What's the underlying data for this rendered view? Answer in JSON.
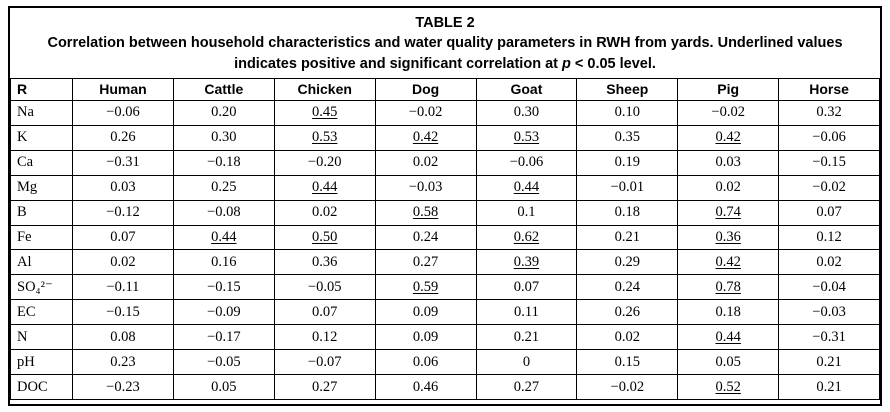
{
  "caption": {
    "title": "TABLE 2",
    "line1": "Correlation between household characteristics and water quality parameters in RWH from yards.  Underlined values",
    "line2_pre": "indicates positive and significant correlation at ",
    "line2_italic": "p",
    "line2_post": " < 0.05 level."
  },
  "table": {
    "header": [
      "R",
      "Human",
      "Cattle",
      "Chicken",
      "Dog",
      "Goat",
      "Sheep",
      "Pig",
      "Horse"
    ],
    "rows": [
      {
        "label": "Na",
        "values": [
          "−0.06",
          "0.20",
          "0.45",
          "−0.02",
          "0.30",
          "0.10",
          "−0.02",
          "0.32"
        ],
        "underlined": [
          2
        ]
      },
      {
        "label": "K",
        "values": [
          "0.26",
          "0.30",
          "0.53",
          "0.42",
          "0.53",
          "0.35",
          "0.42",
          "−0.06"
        ],
        "underlined": [
          2,
          3,
          4,
          6
        ]
      },
      {
        "label": "Ca",
        "values": [
          "−0.31",
          "−0.18",
          "−0.20",
          "0.02",
          "−0.06",
          "0.19",
          "0.03",
          "−0.15"
        ],
        "underlined": []
      },
      {
        "label": "Mg",
        "values": [
          "0.03",
          "0.25",
          "0.44",
          "−0.03",
          "0.44",
          "−0.01",
          "0.02",
          "−0.02"
        ],
        "underlined": [
          2,
          4
        ]
      },
      {
        "label": "B",
        "values": [
          "−0.12",
          "−0.08",
          "0.02",
          "0.58",
          "0.1",
          "0.18",
          "0.74",
          "0.07"
        ],
        "underlined": [
          3,
          6
        ]
      },
      {
        "label": "Fe",
        "values": [
          "0.07",
          "0.44",
          "0.50",
          "0.24",
          "0.62",
          "0.21",
          "0.36",
          "0.12"
        ],
        "underlined": [
          1,
          2,
          4,
          6
        ]
      },
      {
        "label": "Al",
        "values": [
          "0.02",
          "0.16",
          "0.36",
          "0.27",
          "0.39",
          "0.29",
          "0.42",
          "0.02"
        ],
        "underlined": [
          4,
          6
        ]
      },
      {
        "label": "SO₄²⁻",
        "values": [
          "−0.11",
          "−0.15",
          "−0.05",
          "0.59",
          "0.07",
          "0.24",
          "0.78",
          "−0.04"
        ],
        "underlined": [
          3,
          6
        ]
      },
      {
        "label": "EC",
        "values": [
          "−0.15",
          "−0.09",
          "0.07",
          "0.09",
          "0.11",
          "0.26",
          "0.18",
          "−0.03"
        ],
        "underlined": []
      },
      {
        "label": "N",
        "values": [
          "0.08",
          "−0.17",
          "0.12",
          "0.09",
          "0.21",
          "0.02",
          "0.44",
          "−0.31"
        ],
        "underlined": [
          6
        ]
      },
      {
        "label": "pH",
        "values": [
          "0.23",
          "−0.05",
          "−0.07",
          "0.06",
          "0",
          "0.15",
          "0.05",
          "0.21"
        ],
        "underlined": []
      },
      {
        "label": "DOC",
        "values": [
          "−0.23",
          "0.05",
          "0.27",
          "0.46",
          "0.27",
          "−0.02",
          "0.52",
          "0.21"
        ],
        "underlined": [
          6
        ]
      }
    ]
  }
}
